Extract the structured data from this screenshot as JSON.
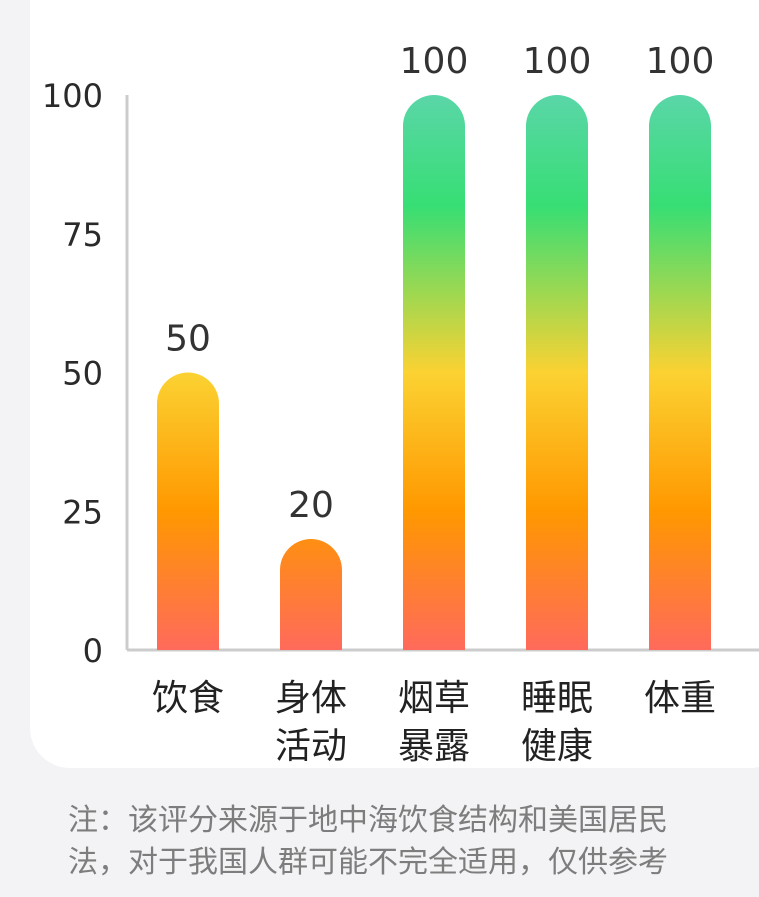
{
  "chart_data": {
    "type": "bar",
    "categories": [
      [
        "饮食"
      ],
      [
        "身体",
        "活动"
      ],
      [
        "烟草",
        "暴露"
      ],
      [
        "睡眠",
        "健康"
      ],
      [
        "体重"
      ]
    ],
    "values": [
      50,
      20,
      100,
      100,
      100
    ],
    "value_labels": [
      "50",
      "20",
      "100",
      "100",
      "100"
    ],
    "yticks": [
      0,
      25,
      50,
      75,
      100
    ],
    "ylim": [
      0,
      100
    ],
    "title": "",
    "xlabel": "",
    "ylabel": "",
    "grid": false,
    "colors": {
      "green": "#37de74",
      "teal": "#5ad6a8",
      "yellow": "#fbd232",
      "orange": "#ff9800",
      "red": "#ff6a5b",
      "axis": "#cccccc"
    }
  },
  "note": {
    "line1": "注：该评分来源于地中海饮食结构和美国居民",
    "line2": "法，对于我国人群可能不完全适用，仅供参考"
  }
}
